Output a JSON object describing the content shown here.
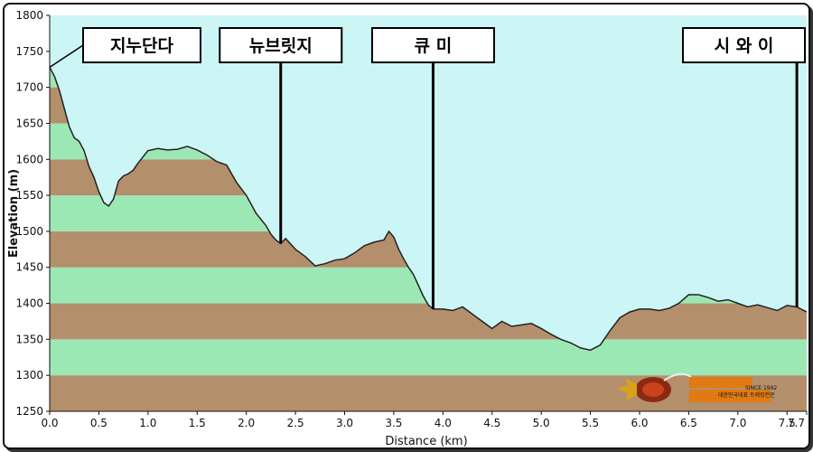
{
  "colors": {
    "sky": "#ccf5f5",
    "band_green": "#9ce8b4",
    "band_brown": "#b48f6c",
    "line": "#222222"
  },
  "chart_data": {
    "type": "area",
    "title": "",
    "xlabel": "Distance  (km)",
    "ylabel": "Elevation (m)",
    "xlim": [
      0,
      7.7
    ],
    "ylim": [
      1250,
      1800
    ],
    "x_ticks": [
      "0.0",
      "0.5",
      "1.0",
      "1.5",
      "2.0",
      "2.5",
      "3.0",
      "3.5",
      "4.0",
      "4.5",
      "5.0",
      "5.5",
      "6.0",
      "6.5",
      "7.0",
      "7.5",
      "7.7"
    ],
    "y_ticks": [
      "1250",
      "1300",
      "1350",
      "1400",
      "1450",
      "1500",
      "1550",
      "1600",
      "1650",
      "1700",
      "1750",
      "1800"
    ],
    "grid": false,
    "series": [
      {
        "x": [
          0.0,
          0.05,
          0.1,
          0.15,
          0.2,
          0.25,
          0.3,
          0.35,
          0.4,
          0.45,
          0.5,
          0.55,
          0.6,
          0.65,
          0.7,
          0.75,
          0.8,
          0.85,
          0.9,
          1.0,
          1.1,
          1.15,
          1.2,
          1.3,
          1.4,
          1.5,
          1.6,
          1.7,
          1.8,
          1.9,
          2.0,
          2.1,
          2.2,
          2.25,
          2.3,
          2.35,
          2.4,
          2.5,
          2.6,
          2.7,
          2.8,
          2.9,
          3.0,
          3.1,
          3.2,
          3.3,
          3.4,
          3.45,
          3.5,
          3.55,
          3.6,
          3.65,
          3.7,
          3.8,
          3.85,
          3.9,
          4.0,
          4.1,
          4.2,
          4.3,
          4.4,
          4.5,
          4.6,
          4.7,
          4.8,
          4.9,
          5.0,
          5.1,
          5.2,
          5.3,
          5.4,
          5.5,
          5.6,
          5.7,
          5.8,
          5.9,
          6.0,
          6.1,
          6.2,
          6.3,
          6.4,
          6.5,
          6.6,
          6.7,
          6.8,
          6.9,
          7.0,
          7.1,
          7.2,
          7.3,
          7.4,
          7.5,
          7.6,
          7.7
        ],
        "y": [
          1728,
          1715,
          1695,
          1670,
          1645,
          1630,
          1625,
          1612,
          1590,
          1575,
          1555,
          1540,
          1535,
          1545,
          1570,
          1577,
          1580,
          1585,
          1595,
          1612,
          1615,
          1614,
          1613,
          1614,
          1618,
          1613,
          1606,
          1597,
          1592,
          1568,
          1550,
          1525,
          1508,
          1496,
          1488,
          1483,
          1490,
          1475,
          1465,
          1452,
          1455,
          1460,
          1462,
          1470,
          1480,
          1485,
          1488,
          1500,
          1492,
          1475,
          1462,
          1450,
          1440,
          1410,
          1398,
          1392,
          1392,
          1390,
          1395,
          1385,
          1375,
          1365,
          1375,
          1368,
          1370,
          1372,
          1365,
          1357,
          1350,
          1345,
          1338,
          1335,
          1342,
          1362,
          1380,
          1388,
          1392,
          1392,
          1390,
          1393,
          1400,
          1412,
          1412,
          1408,
          1403,
          1405,
          1400,
          1395,
          1398,
          1394,
          1390,
          1397,
          1395,
          1388
        ]
      }
    ],
    "annotations": [
      {
        "x": 0.0,
        "label": "지누단다"
      },
      {
        "x": 2.35,
        "label": "뉴브릿지"
      },
      {
        "x": 3.9,
        "label": "큐      미"
      },
      {
        "x": 7.6,
        "label": "시 와 이"
      }
    ]
  },
  "logo": {
    "since": "SINCE 1992",
    "org": "대한민국대표 트레킹전문"
  }
}
